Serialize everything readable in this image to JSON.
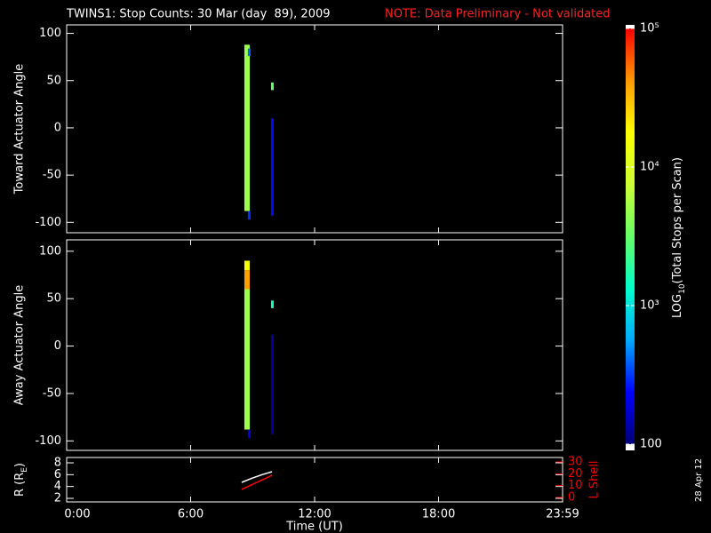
{
  "title": "TWINS1: Stop Counts: 30 Mar (day  89), 2009",
  "note": "NOTE: Data Preliminary - Not validated",
  "date_stamp": "28 Apr 12",
  "colorbar": {
    "label_main": "LOG",
    "label_sub": "10",
    "label_rest": "(Total Stops per Scan)",
    "log": true,
    "lim": [
      100,
      100000
    ],
    "ticks": [
      100,
      {
        "value": 1000,
        "label": "10³"
      },
      {
        "value": 10000,
        "label": "10⁴"
      },
      {
        "value": 100000,
        "label": "10⁵"
      }
    ],
    "colors": [
      "#000078",
      "#0000ff",
      "#00aaff",
      "#00ffcc",
      "#66ff66",
      "#ccff33",
      "#ffff00",
      "#ff9900",
      "#ff0000"
    ]
  },
  "chart_data": [
    {
      "type": "heatmap",
      "ylabel": "Toward Actuator Angle",
      "xlim": [
        0,
        24
      ],
      "ylim": [
        -111,
        109
      ],
      "yticks": [
        100,
        50,
        0,
        -50,
        -100
      ],
      "xticks": [
        0,
        6,
        12,
        18,
        24
      ],
      "cells": [
        {
          "x": [
            8.6,
            8.86
          ],
          "y": [
            -88,
            88
          ],
          "value": 5000
        },
        {
          "x": [
            8.77,
            8.9
          ],
          "y": [
            -97,
            -88
          ],
          "value": 300
        },
        {
          "x": [
            8.77,
            8.9
          ],
          "y": [
            76,
            84
          ],
          "value": 400
        },
        {
          "x": [
            9.89,
            10.02
          ],
          "y": [
            -93,
            10
          ],
          "value": 250
        },
        {
          "x": [
            9.89,
            10.02
          ],
          "y": [
            40,
            48
          ],
          "value": 3000
        }
      ]
    },
    {
      "type": "heatmap",
      "ylabel": "Away Actuator Angle",
      "xlim": [
        0,
        24
      ],
      "ylim": [
        -110,
        112
      ],
      "yticks": [
        100,
        50,
        0,
        -50,
        -100
      ],
      "xticks": [
        0,
        6,
        12,
        18,
        24
      ],
      "cells": [
        {
          "x": [
            8.6,
            8.86
          ],
          "y": [
            -88,
            60
          ],
          "value": 5000
        },
        {
          "x": [
            8.6,
            8.86
          ],
          "y": [
            60,
            80
          ],
          "value": 40000
        },
        {
          "x": [
            8.6,
            8.86
          ],
          "y": [
            80,
            90
          ],
          "value": 15000
        },
        {
          "x": [
            8.77,
            8.9
          ],
          "y": [
            -97,
            -88
          ],
          "value": 200
        },
        {
          "x": [
            9.89,
            10.02
          ],
          "y": [
            -93,
            12
          ],
          "value": 130
        },
        {
          "x": [
            9.89,
            10.02
          ],
          "y": [
            40,
            48
          ],
          "value": 1500
        }
      ]
    },
    {
      "type": "line",
      "ylabel_main": "R (R",
      "ylabel_sub": "E",
      "ylabel_end": ")",
      "y2label": "L Shell",
      "xlabel": "Time (UT)",
      "xlim": [
        0,
        24
      ],
      "ylim": [
        1.4,
        8.9
      ],
      "y2lim": [
        -3.75,
        33.75
      ],
      "yticks": [
        2,
        4,
        6,
        8
      ],
      "y2ticks": [
        0,
        10,
        20,
        30
      ],
      "xticks": [
        {
          "value": 0,
          "label": "0:00"
        },
        {
          "value": 6,
          "label": "6:00"
        },
        {
          "value": 12,
          "label": "12:00"
        },
        {
          "value": 18,
          "label": "18:00"
        },
        {
          "value": 24,
          "label": "23:59"
        }
      ],
      "x": [
        8.47,
        8.97,
        9.46,
        9.94
      ],
      "series": [
        {
          "name": "R",
          "color": "#ffffff",
          "values": [
            4.7,
            5.4,
            6.0,
            6.5
          ]
        },
        {
          "name": "L Shell",
          "color": "#ff0000",
          "axis": "y2",
          "values": [
            6.8,
            10.8,
            14.8,
            18.8
          ]
        }
      ]
    }
  ]
}
